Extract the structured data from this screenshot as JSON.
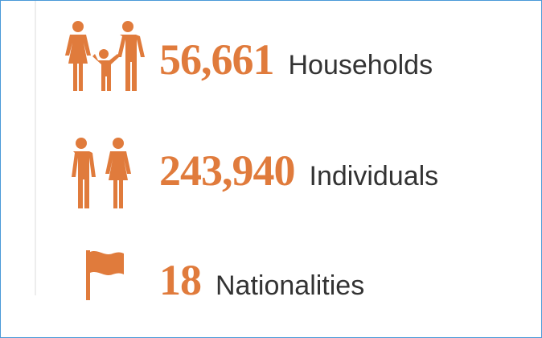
{
  "stats": [
    {
      "value": "56,661",
      "label": "Households"
    },
    {
      "value": "243,940",
      "label": "Individuals"
    },
    {
      "value": "18",
      "label": "Nationalities"
    }
  ]
}
